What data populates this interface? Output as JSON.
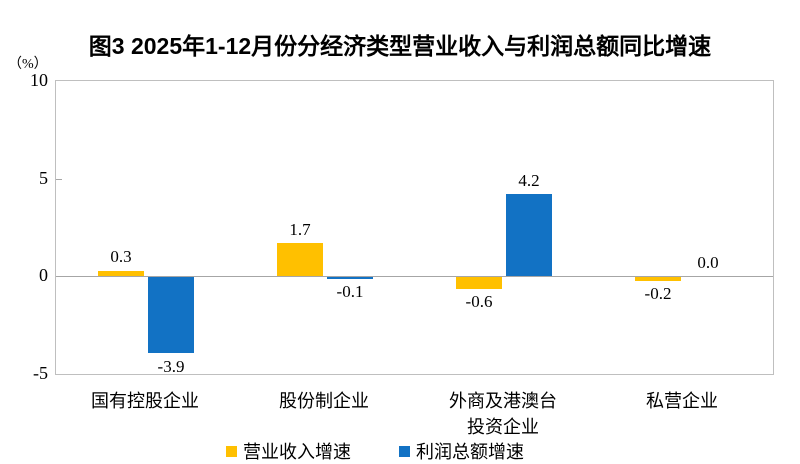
{
  "chart_data": {
    "type": "bar",
    "title": "图3 2025年1-12月份分经济类型营业收入与利润总额同比增速",
    "ylabel": "（%）",
    "xlabel": "",
    "ylim": [
      -5,
      10
    ],
    "yticks": [
      10,
      5,
      0,
      -5
    ],
    "grid": false,
    "legend_position": "bottom",
    "categories": [
      "国有控股企业",
      "股份制企业",
      "外商及港澳台\n投资企业",
      "私营企业"
    ],
    "series": [
      {
        "name": "营业收入增速",
        "color": "#FFC000",
        "values": [
          0.3,
          1.7,
          -0.6,
          -0.2
        ]
      },
      {
        "name": "利润总额增速",
        "color": "#1272C4",
        "values": [
          -3.9,
          -0.1,
          4.2,
          0.0
        ]
      }
    ],
    "value_label_format": "one_decimal",
    "colors": {
      "plot_border": "#BFBFBF",
      "zero_line": "#A6A6A6",
      "text": "#000000"
    }
  }
}
